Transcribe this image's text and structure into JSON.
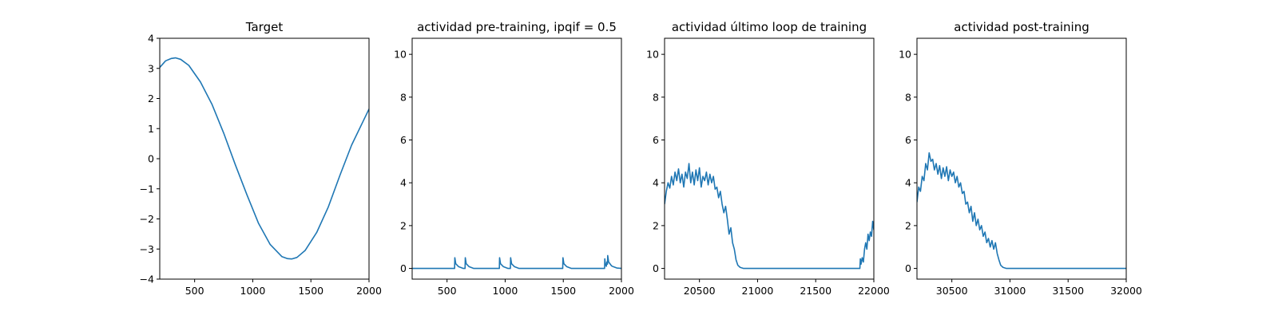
{
  "figure": {
    "line_color": "#1f77b4"
  },
  "chart_data": [
    {
      "type": "line",
      "title": "Target",
      "xlabel": "",
      "ylabel": "",
      "xlim": [
        200,
        2000
      ],
      "ylim": [
        -4,
        4
      ],
      "xticks": [
        500,
        1000,
        1500,
        2000
      ],
      "xtick_labels": [
        "500",
        "1000",
        "1500",
        "2000"
      ],
      "yticks": [
        -4,
        -3,
        -2,
        -1,
        0,
        1,
        2,
        3,
        4
      ],
      "ytick_labels": [
        "−4",
        "−3",
        "−2",
        "−1",
        "0",
        "1",
        "2",
        "3",
        "4"
      ],
      "grid": false,
      "series": [
        {
          "x": [
            200,
            250,
            300,
            335,
            380,
            450,
            550,
            650,
            750,
            850,
            950,
            1050,
            1150,
            1250,
            1300,
            1335,
            1380,
            1450,
            1550,
            1650,
            1750,
            1850,
            1950,
            2000
          ],
          "y": [
            3.03,
            3.25,
            3.33,
            3.35,
            3.3,
            3.1,
            2.55,
            1.8,
            0.85,
            -0.2,
            -1.2,
            -2.15,
            -2.85,
            -3.25,
            -3.32,
            -3.33,
            -3.28,
            -3.05,
            -2.45,
            -1.6,
            -0.55,
            0.45,
            1.25,
            1.65
          ]
        }
      ]
    },
    {
      "type": "line",
      "title": "actividad pre-training, ipqif = 0.5",
      "xlabel": "",
      "ylabel": "",
      "xlim": [
        200,
        2000
      ],
      "ylim": [
        -0.5,
        10.75
      ],
      "xticks": [
        500,
        1000,
        1500,
        2000
      ],
      "xtick_labels": [
        "500",
        "1000",
        "1500",
        "2000"
      ],
      "yticks": [
        0,
        2,
        4,
        6,
        8,
        10
      ],
      "ytick_labels": [
        "0",
        "2",
        "4",
        "6",
        "8",
        "10"
      ],
      "grid": false,
      "series": [
        {
          "x": [
            200,
            565,
            567,
            575,
            600,
            640,
            655,
            657,
            665,
            690,
            730,
            950,
            952,
            960,
            985,
            1025,
            1045,
            1047,
            1055,
            1080,
            1120,
            1495,
            1497,
            1505,
            1530,
            1570,
            1855,
            1857,
            1862,
            1870,
            1875,
            1880,
            1882,
            1890,
            1915,
            1930,
            1960,
            2000
          ],
          "y": [
            0.0,
            0.0,
            0.5,
            0.22,
            0.08,
            0.0,
            0.0,
            0.5,
            0.22,
            0.08,
            0.0,
            0.0,
            0.5,
            0.22,
            0.08,
            0.0,
            0.0,
            0.5,
            0.22,
            0.08,
            0.0,
            0.0,
            0.5,
            0.22,
            0.08,
            0.0,
            0.0,
            0.45,
            0.2,
            0.1,
            0.3,
            0.2,
            0.6,
            0.3,
            0.12,
            0.08,
            0.02,
            0.0
          ]
        }
      ]
    },
    {
      "type": "line",
      "title": "actividad último loop de training",
      "xlabel": "",
      "ylabel": "",
      "xlim": [
        20200,
        22000
      ],
      "ylim": [
        -0.5,
        10.75
      ],
      "xticks": [
        20500,
        21000,
        21500,
        22000
      ],
      "xtick_labels": [
        "20500",
        "21000",
        "21500",
        "22000"
      ],
      "yticks": [
        0,
        2,
        4,
        6,
        8,
        10
      ],
      "ytick_labels": [
        "0",
        "2",
        "4",
        "6",
        "8",
        "10"
      ],
      "grid": false,
      "series": [
        {
          "x": [
            20200,
            20215,
            20230,
            20245,
            20260,
            20275,
            20290,
            20305,
            20320,
            20335,
            20350,
            20365,
            20380,
            20395,
            20410,
            20425,
            20440,
            20455,
            20470,
            20485,
            20500,
            20515,
            20530,
            20545,
            20560,
            20575,
            20590,
            20605,
            20620,
            20635,
            20650,
            20665,
            20680,
            20695,
            20710,
            20725,
            20740,
            20755,
            20770,
            20785,
            20800,
            20815,
            20830,
            20850,
            20880,
            20950,
            21050,
            21200,
            21400,
            21600,
            21800,
            21880,
            21884,
            21890,
            21900,
            21910,
            21920,
            21930,
            21940,
            21950,
            21960,
            21970,
            21980,
            21990,
            22000
          ],
          "y": [
            3.0,
            3.6,
            4.0,
            3.75,
            4.3,
            3.9,
            4.5,
            4.1,
            4.65,
            4.0,
            4.4,
            3.8,
            4.5,
            4.2,
            4.9,
            4.0,
            4.5,
            3.9,
            4.6,
            4.1,
            4.7,
            3.8,
            4.3,
            4.1,
            4.5,
            3.9,
            4.4,
            4.0,
            4.3,
            3.7,
            3.8,
            3.3,
            3.6,
            3.0,
            2.6,
            2.9,
            2.3,
            1.6,
            1.9,
            1.2,
            0.9,
            0.4,
            0.15,
            0.05,
            0.0,
            0.0,
            0.0,
            0.0,
            0.0,
            0.0,
            0.0,
            0.0,
            0.45,
            0.2,
            0.5,
            0.3,
            0.9,
            1.2,
            0.9,
            1.6,
            1.3,
            1.7,
            1.5,
            2.2,
            1.8
          ]
        }
      ]
    },
    {
      "type": "line",
      "title": "actividad post-training",
      "xlabel": "",
      "ylabel": "",
      "xlim": [
        30200,
        32000
      ],
      "ylim": [
        -0.5,
        10.75
      ],
      "xticks": [
        30500,
        31000,
        31500,
        32000
      ],
      "xtick_labels": [
        "30500",
        "31000",
        "31500",
        "32000"
      ],
      "yticks": [
        0,
        2,
        4,
        6,
        8,
        10
      ],
      "ytick_labels": [
        "0",
        "2",
        "4",
        "6",
        "8",
        "10"
      ],
      "grid": false,
      "series": [
        {
          "x": [
            30200,
            30215,
            30230,
            30245,
            30260,
            30275,
            30290,
            30305,
            30320,
            30335,
            30350,
            30365,
            30380,
            30395,
            30410,
            30425,
            30440,
            30455,
            30470,
            30485,
            30500,
            30515,
            30530,
            30545,
            30560,
            30575,
            30590,
            30605,
            30620,
            30635,
            30650,
            30665,
            30680,
            30695,
            30710,
            30725,
            30740,
            30755,
            30770,
            30785,
            30800,
            30815,
            30830,
            30845,
            30860,
            30875,
            30890,
            30905,
            30920,
            30940,
            30970,
            31050,
            31200,
            31400,
            31600,
            31800,
            32000
          ],
          "y": [
            3.1,
            3.8,
            3.6,
            4.3,
            4.1,
            4.9,
            4.6,
            5.4,
            5.0,
            5.1,
            4.6,
            4.9,
            4.4,
            4.8,
            4.2,
            4.7,
            4.3,
            4.75,
            4.1,
            4.6,
            4.3,
            4.5,
            4.0,
            4.3,
            3.8,
            4.0,
            3.5,
            3.6,
            3.0,
            3.1,
            2.6,
            2.9,
            2.2,
            2.6,
            2.0,
            2.3,
            1.8,
            2.0,
            1.5,
            1.7,
            1.2,
            1.4,
            1.0,
            1.3,
            0.9,
            1.2,
            0.7,
            0.4,
            0.15,
            0.05,
            0.0,
            0.0,
            0.0,
            0.0,
            0.0,
            0.0,
            0.0
          ]
        }
      ]
    }
  ]
}
